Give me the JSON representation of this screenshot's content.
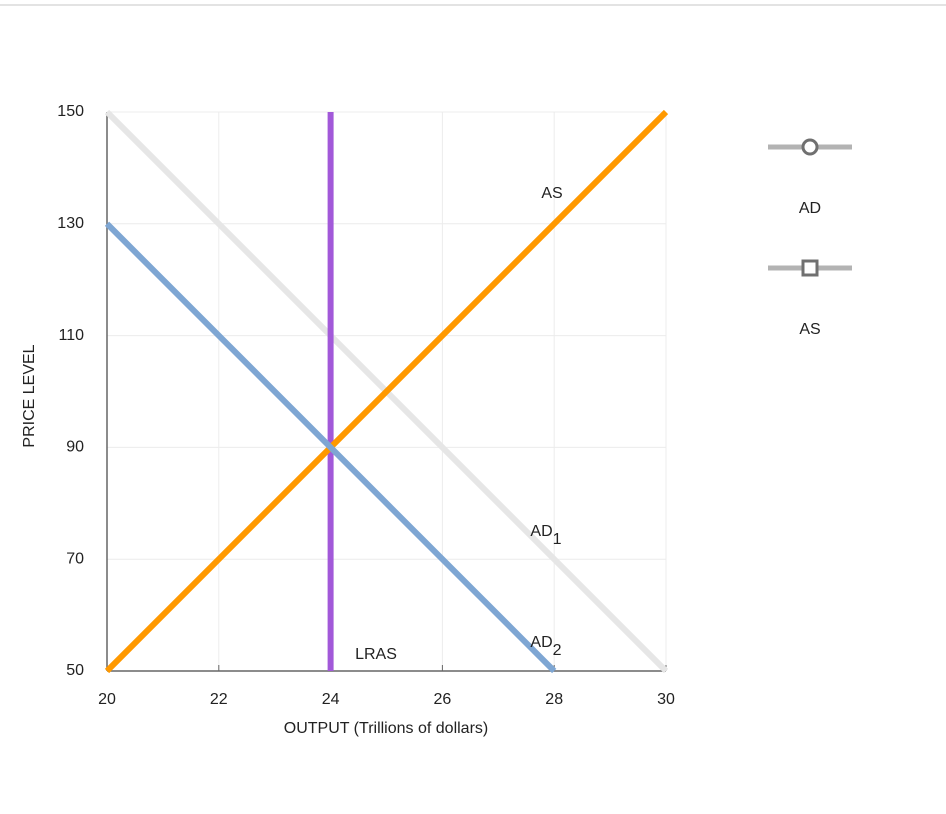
{
  "chart_data": {
    "type": "line",
    "x_label": "OUTPUT (Trillions of dollars)",
    "y_label": "PRICE LEVEL",
    "xlim": [
      20,
      30
    ],
    "xticks": [
      20,
      22,
      24,
      26,
      28,
      30
    ],
    "ylim": [
      50,
      150
    ],
    "yticks": [
      50,
      70,
      90,
      110,
      130,
      150
    ],
    "grid": true,
    "series": [
      {
        "label": "AD",
        "label_sub": "1",
        "color": "#e6e6e6",
        "x": [
          20,
          30
        ],
        "values": [
          150,
          50
        ]
      },
      {
        "label": "LRAS",
        "color": "#a259d9",
        "x": [
          24,
          24
        ],
        "values": [
          50,
          150
        ]
      },
      {
        "label": "AS",
        "color": "#ff9900",
        "x": [
          20,
          30
        ],
        "values": [
          50,
          150
        ]
      },
      {
        "label": "AD",
        "label_sub": "2",
        "color": "#7ea6d3",
        "x": [
          20,
          28
        ],
        "values": [
          130,
          50
        ]
      }
    ],
    "palette": [
      {
        "label": "AD",
        "marker": "circle"
      },
      {
        "label": "AS",
        "marker": "square"
      }
    ]
  }
}
